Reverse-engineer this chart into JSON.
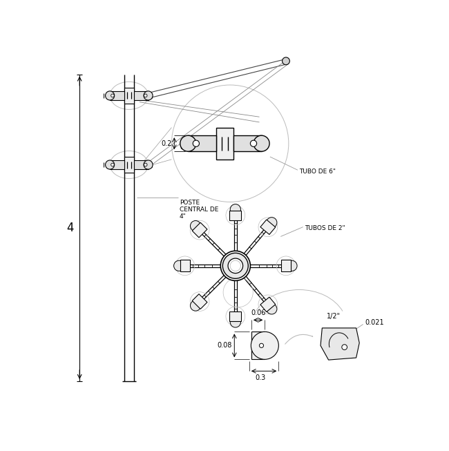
{
  "bg_color": "#ffffff",
  "line_color": "#000000",
  "gray_color": "#999999",
  "light_gray": "#bbbbbb",
  "dim_label_4": "4",
  "dim_label_02": "0.2",
  "dim_label_poste": "POSTE\nCENTRAL DE\n4\"",
  "dim_label_tubo6": "TUBO DE 6\"",
  "dim_label_tubos2": "TUBOS DE 2\"",
  "dim_label_021": "0.021",
  "dim_label_006": "0.06",
  "dim_label_008": "0.08",
  "dim_label_03": "0.3",
  "dim_label_half": "1/2\""
}
